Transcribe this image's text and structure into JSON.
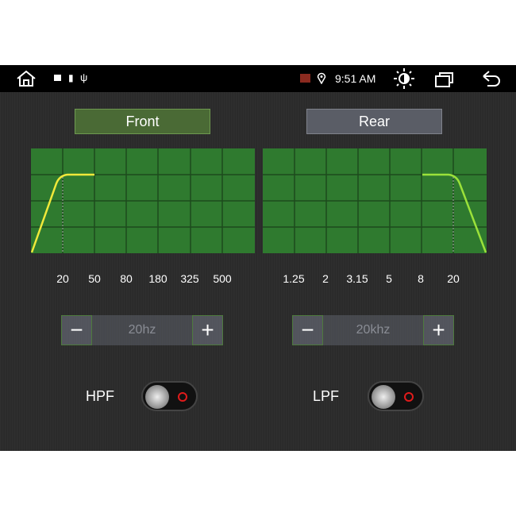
{
  "status_bar": {
    "time": "9:51 AM",
    "icons": [
      "home-icon",
      "camera-icon",
      "android-icon",
      "usb-icon",
      "cast-icon",
      "location-icon",
      "brightness-icon",
      "recent-apps-icon",
      "back-icon"
    ]
  },
  "tabs": [
    {
      "label": "Front",
      "selected": true
    },
    {
      "label": "Rear",
      "selected": false
    }
  ],
  "front": {
    "freq_labels": [
      "20",
      "50",
      "80",
      "180",
      "325",
      "500"
    ],
    "value": "20hz",
    "filter_label": "HPF",
    "filter_on": false
  },
  "rear": {
    "freq_labels": [
      "1.25",
      "2",
      "3.15",
      "5",
      "8",
      "20"
    ],
    "value": "20khz",
    "filter_label": "LPF",
    "filter_on": false
  },
  "colors": {
    "graph": "#2f7a2f",
    "curve": "#f0e83a",
    "rear_curve": "#9be13a",
    "selected_tab": "#4a6a35"
  }
}
